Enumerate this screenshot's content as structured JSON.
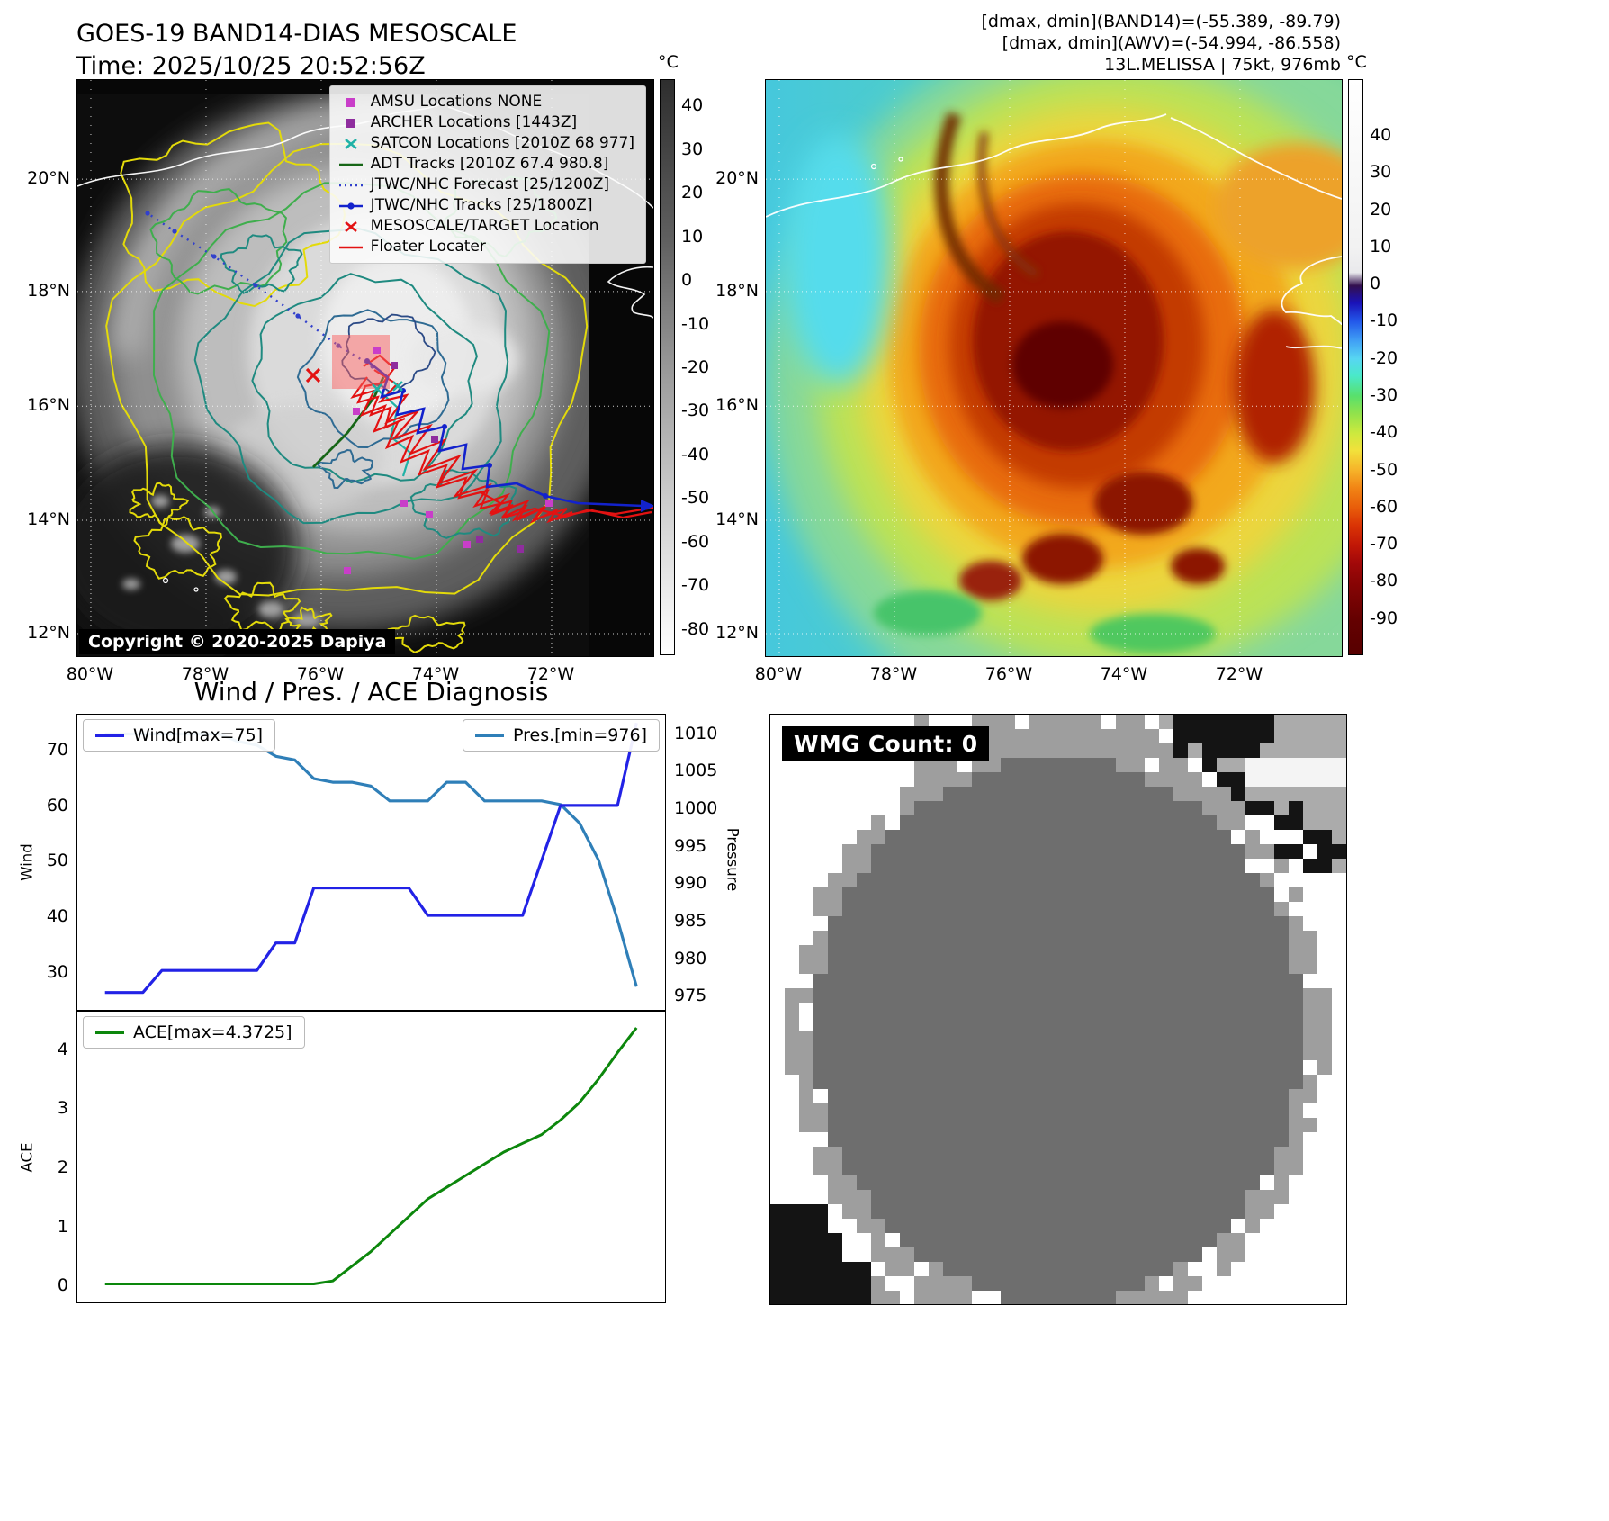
{
  "panel_band14": {
    "title_line1": "GOES-19 BAND14-DIAS MESOSCALE",
    "title_line2": "Time: 2025/10/25 20:52:56Z",
    "copyright": "Copyright © 2020-2025 Dapiya",
    "lat_labels": [
      "20°N",
      "18°N",
      "16°N",
      "14°N",
      "12°N"
    ],
    "lon_labels": [
      "80°W",
      "78°W",
      "76°W",
      "74°W",
      "72°W"
    ],
    "colorbar": {
      "unit": "°C",
      "ticks": [
        40,
        30,
        20,
        10,
        0,
        -10,
        -20,
        -30,
        -40,
        -50,
        -60,
        -70,
        -80
      ]
    },
    "legend": [
      {
        "label": "AMSU Locations NONE",
        "marker": "square",
        "color": "#c93ec9"
      },
      {
        "label": "ARCHER Locations [1443Z]",
        "marker": "square",
        "color": "#8f2d9e"
      },
      {
        "label": "SATCON Locations [2010Z 68 977]",
        "marker": "x",
        "color": "#1fb2a6"
      },
      {
        "label": "ADT Tracks [2010Z 67.4 980.8]",
        "marker": "line",
        "color": "#176617"
      },
      {
        "label": "JTWC/NHC Forecast [25/1200Z]",
        "marker": "dotted",
        "color": "#3240cc"
      },
      {
        "label": "JTWC/NHC Tracks [25/1800Z]",
        "marker": "line-dot",
        "color": "#1322cc"
      },
      {
        "label": "MESOSCALE/TARGET Location",
        "marker": "x",
        "color": "#e31212"
      },
      {
        "label": "Floater Locater",
        "marker": "line",
        "color": "#e31212"
      }
    ]
  },
  "panel_awv": {
    "header_line1": "[dmax, dmin](BAND14)=(-55.389, -89.79)",
    "header_line2": "[dmax, dmin](AWV)=(-54.994, -86.558)",
    "header_line3": "13L.MELISSA | 75kt, 976mb",
    "lat_labels": [
      "20°N",
      "18°N",
      "16°N",
      "14°N",
      "12°N"
    ],
    "lon_labels": [
      "80°W",
      "78°W",
      "76°W",
      "74°W",
      "72°W"
    ],
    "colorbar": {
      "unit": "°C",
      "ticks": [
        40,
        30,
        20,
        10,
        0,
        -10,
        -20,
        -30,
        -40,
        -50,
        -60,
        -70,
        -80,
        -90
      ]
    }
  },
  "diagnosis": {
    "title": "Wind / Pres. / ACE Diagnosis",
    "wind_legend": "Wind[max=75]",
    "pres_legend": "Pres.[min=976]",
    "ace_legend": "ACE[max=4.3725]",
    "wind_axis_label": "Wind",
    "pres_axis_label": "Pressure",
    "ace_axis_label": "ACE"
  },
  "wmg": {
    "count_label": "WMG Count: 0"
  },
  "chart_data": [
    {
      "type": "line",
      "title": "Wind / Pres. / ACE Diagnosis",
      "x_points": 29,
      "series": [
        {
          "name": "Wind[max=75]",
          "axis": "left",
          "color": "#2222e6",
          "values": [
            26,
            26,
            26,
            30,
            30,
            30,
            30,
            30,
            30,
            35,
            35,
            45,
            45,
            45,
            45,
            45,
            45,
            40,
            40,
            40,
            40,
            40,
            40,
            50,
            60,
            60,
            60,
            60,
            75
          ]
        },
        {
          "name": "Pres.[min=976]",
          "axis": "right",
          "color": "#2f7fb8",
          "values": [
            1010,
            1010,
            1010,
            1010,
            1010,
            1010,
            1010,
            1009,
            1008.5,
            1007,
            1006.5,
            1004,
            1003.5,
            1003.5,
            1003,
            1001,
            1001,
            1001,
            1003.5,
            1003.5,
            1001,
            1001,
            1001,
            1001,
            1000.5,
            998,
            993,
            985,
            976
          ]
        }
      ],
      "ylabel_left": "Wind",
      "yticks_left": [
        30,
        40,
        50,
        60,
        70
      ],
      "ylim_left": [
        23,
        76.5
      ],
      "ylabel_right": "Pressure",
      "yticks_right": [
        975,
        980,
        985,
        990,
        995,
        1000,
        1005,
        1010
      ],
      "ylim_right": [
        973,
        1012.6
      ],
      "legend_position": "upper-left-and-upper-right",
      "grid": false
    },
    {
      "type": "line",
      "series": [
        {
          "name": "ACE[max=4.3725]",
          "color": "#0c870c",
          "values": [
            0,
            0,
            0,
            0,
            0,
            0,
            0,
            0,
            0,
            0,
            0,
            0,
            0.05,
            0.3,
            0.55,
            0.85,
            1.15,
            1.45,
            1.65,
            1.85,
            2.05,
            2.25,
            2.4,
            2.55,
            2.8,
            3.1,
            3.5,
            3.95,
            4.3725
          ]
        }
      ],
      "ylabel": "ACE",
      "yticks": [
        0,
        1,
        2,
        3,
        4
      ],
      "ylim": [
        -0.3,
        4.65
      ],
      "legend_position": "upper-left",
      "grid": false
    }
  ]
}
